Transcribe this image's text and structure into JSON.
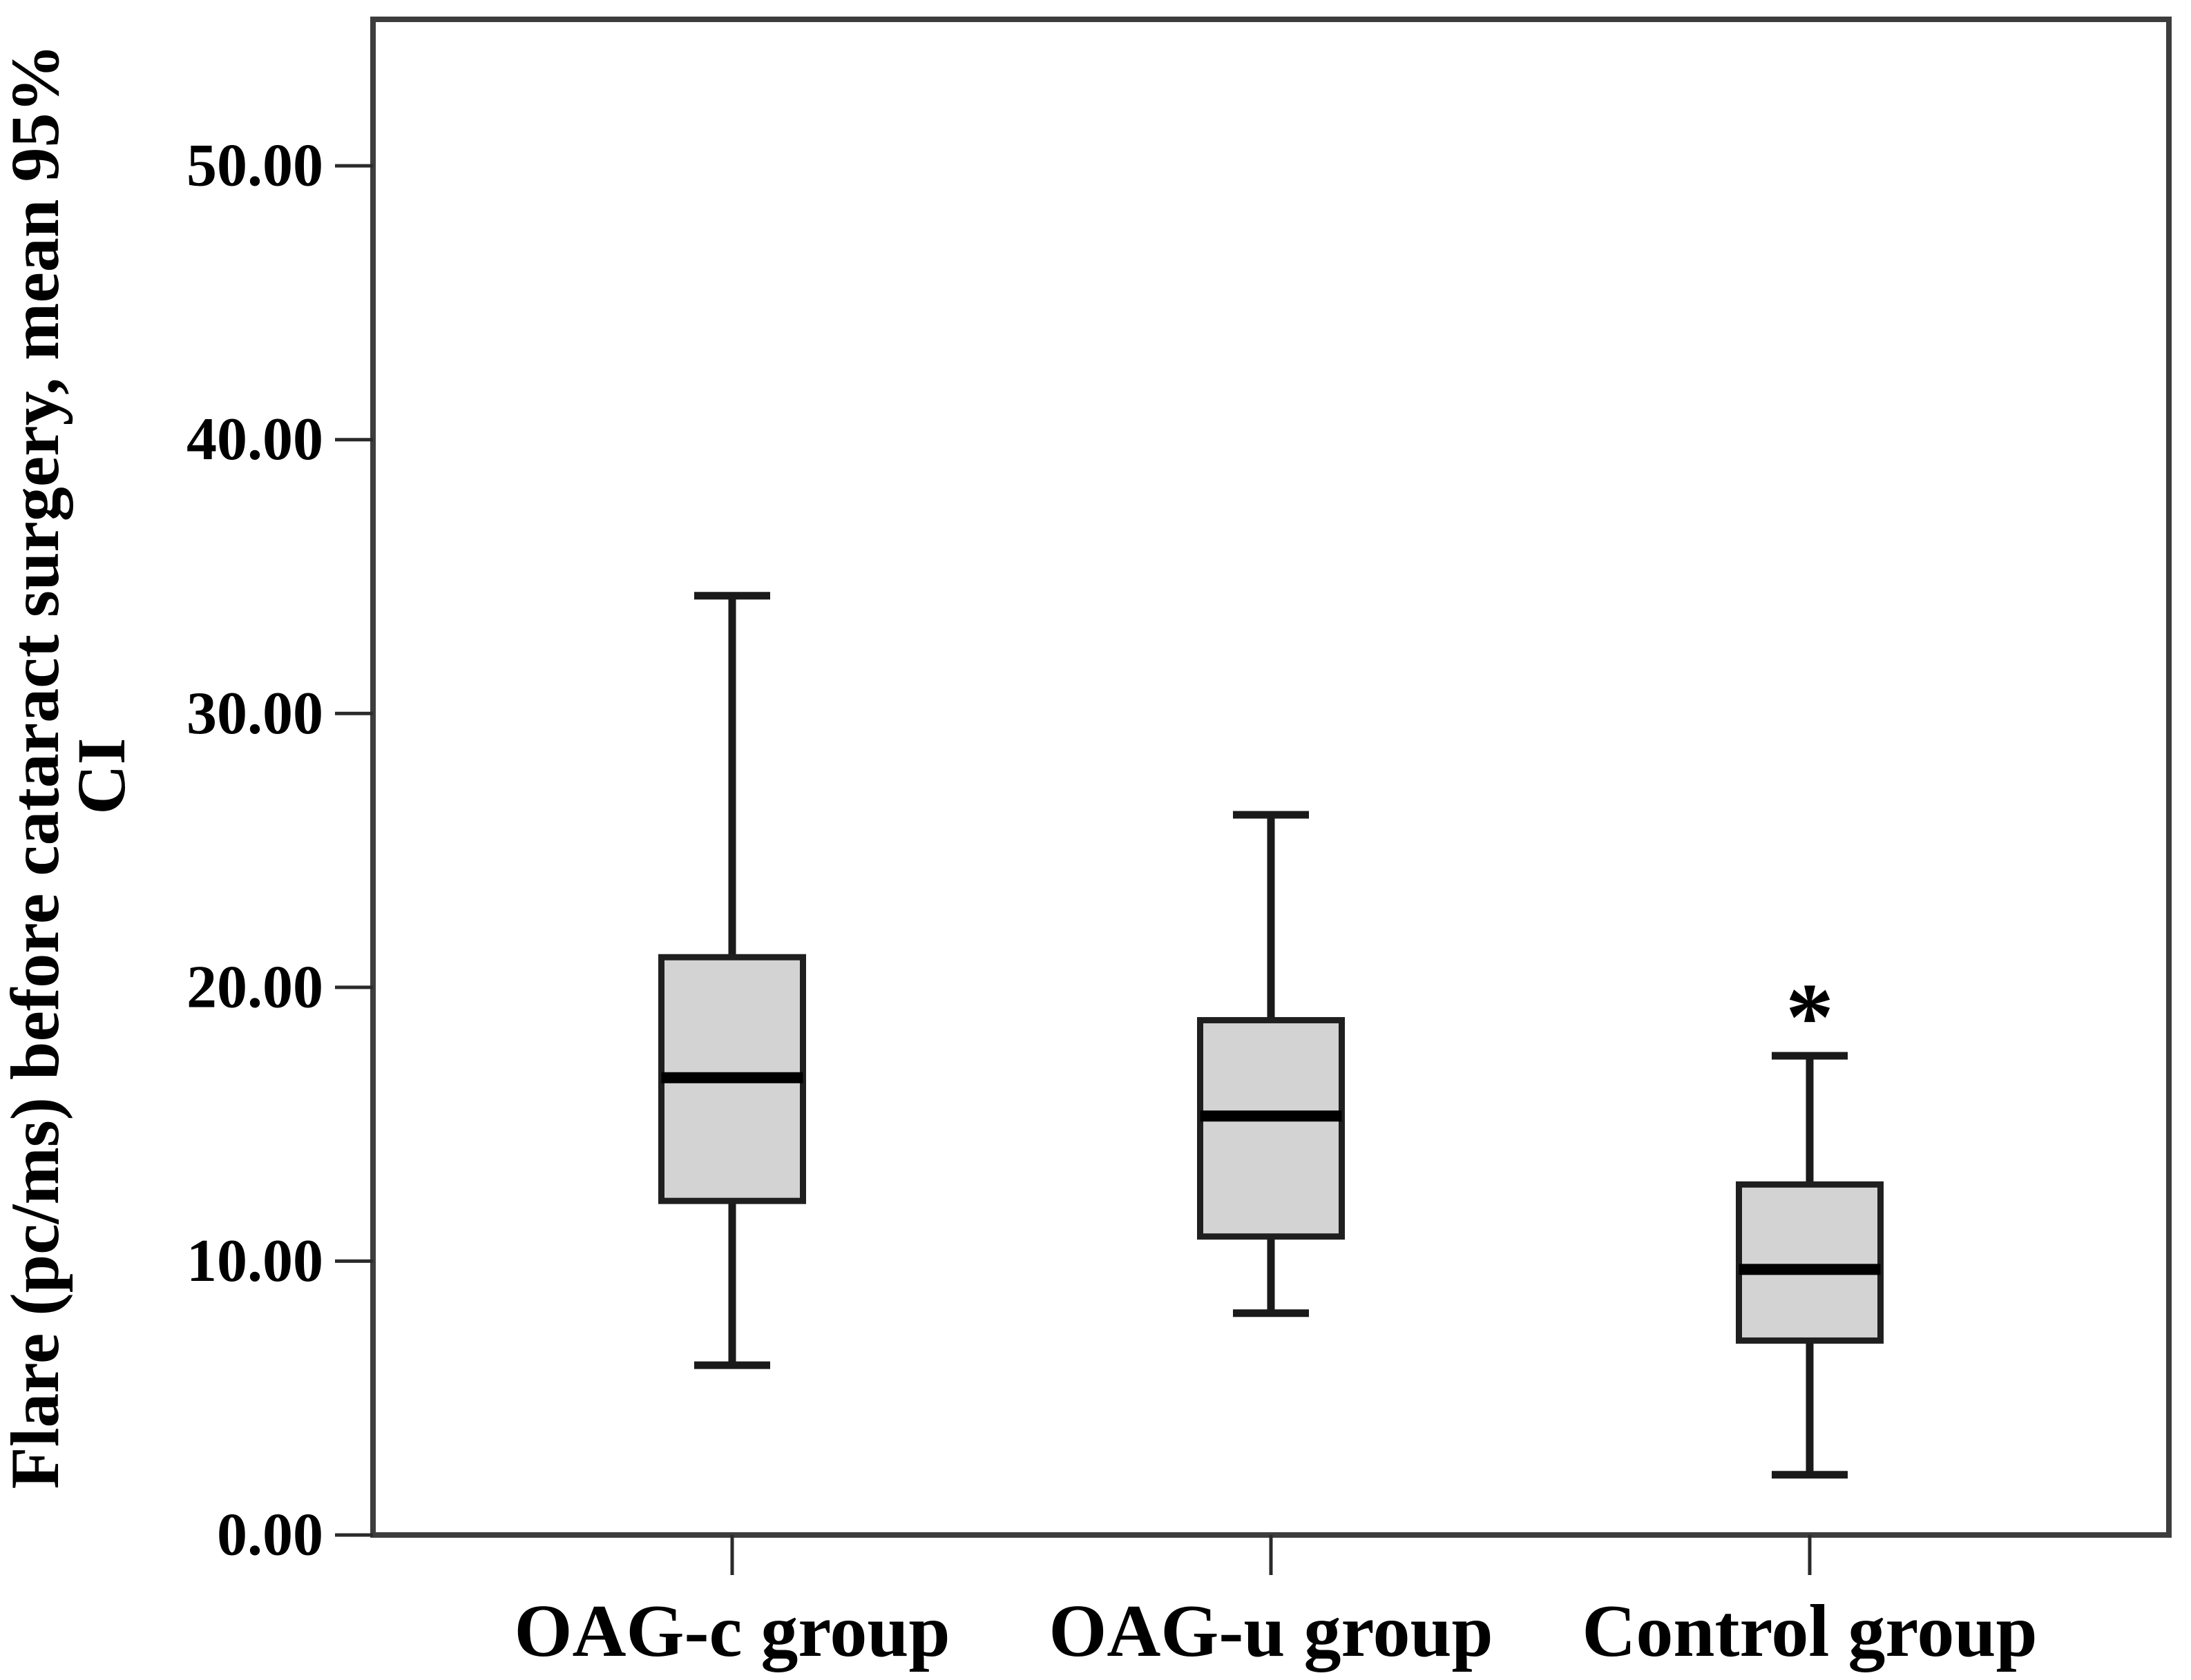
{
  "chart_data": {
    "type": "boxplot",
    "title": "",
    "ylabel_lines": [
      "Flare (pc/ms) before cataract surgery, mean 95%",
      "CI"
    ],
    "xlabel": "",
    "categories": [
      "OAG-c group",
      "OAG-u group",
      "Control group"
    ],
    "ylim": [
      0,
      55.35
    ],
    "grid": "off",
    "legend": "none",
    "yticks": [
      {
        "value": 0,
        "label": "0.00"
      },
      {
        "value": 10,
        "label": "10.00"
      },
      {
        "value": 20,
        "label": "20.00"
      },
      {
        "value": 30,
        "label": "30.00"
      },
      {
        "value": 40,
        "label": "40.00"
      },
      {
        "value": 50,
        "label": "50.00"
      }
    ],
    "series": [
      {
        "category": "OAG-c group",
        "whisker_low": 6.2,
        "q1": 12.2,
        "median": 16.7,
        "q3": 21.1,
        "whisker_high": 34.3
      },
      {
        "category": "OAG-u group",
        "whisker_low": 8.1,
        "q1": 10.9,
        "median": 15.3,
        "q3": 18.8,
        "whisker_high": 26.3
      },
      {
        "category": "Control group",
        "whisker_low": 2.2,
        "q1": 7.1,
        "median": 9.7,
        "q3": 12.8,
        "whisker_high": 17.5
      }
    ],
    "annotations": [
      {
        "text": "*",
        "category_index": 2,
        "value": 19.5
      }
    ],
    "colors": {
      "background": "#ffffff",
      "box_fill": "#d3d3d3",
      "box_border": "#1f1f1f",
      "median": "#000000",
      "whisker": "#1a1a1a",
      "axis": "#3d3d3d",
      "tick": "#2a2a2a",
      "text": "#000000"
    }
  }
}
